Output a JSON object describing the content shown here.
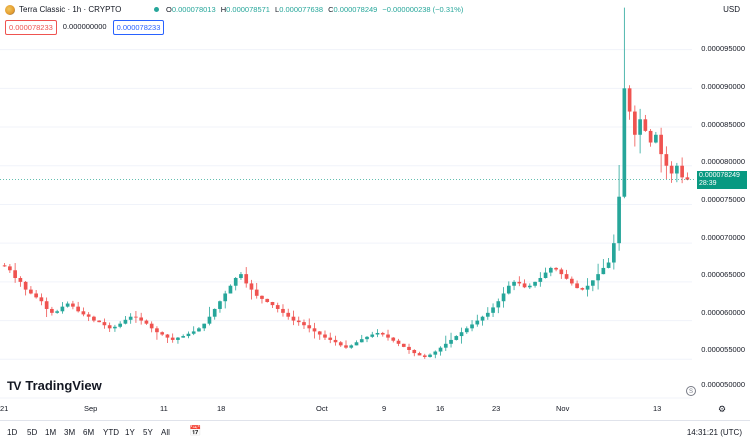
{
  "header": {
    "symbol_title": "Terra Classic · 1h · CRYPTO",
    "ohlc": [
      {
        "key": "O",
        "value": "0.000078013"
      },
      {
        "key": "H",
        "value": "0.000078571"
      },
      {
        "key": "L",
        "value": "0.000077638"
      },
      {
        "key": "C",
        "value": "0.000078249"
      }
    ],
    "change": "−0.000000238 (−0.31%)",
    "currency": "USD"
  },
  "trade": {
    "sell_price": "0.000078233",
    "spread": "0.000000000",
    "buy_price": "0.000078233"
  },
  "price_axis": {
    "labels": [
      "0.000095000",
      "0.000090000",
      "0.000085000",
      "0.000080000",
      "0.000075000",
      "0.000070000",
      "0.000065000",
      "0.000060000",
      "0.000055000",
      "0.000050000"
    ],
    "last_price": "0.000078249",
    "countdown": "28:39",
    "last_price_color": "#089981"
  },
  "time_axis": {
    "labels": [
      "21",
      "Sep",
      "11",
      "18",
      "Oct",
      "9",
      "16",
      "23",
      "Nov",
      "13"
    ]
  },
  "watermark": {
    "icon": "TV",
    "text": "TradingView"
  },
  "toolbar": {
    "timeframes": [
      "1D",
      "5D",
      "1M",
      "3M",
      "6M",
      "YTD",
      "1Y",
      "5Y",
      "All"
    ],
    "clock": "14:31:21 (UTC)"
  },
  "colors": {
    "up": "#26a69a",
    "down": "#ef5350",
    "accent": "#2962ff"
  },
  "chart_data": {
    "type": "candlestick",
    "title": "",
    "xlabel": "",
    "ylabel": "",
    "ylim": [
      5e-05,
      9.65e-05
    ],
    "x_ticks": [
      "21",
      "Sep",
      "11",
      "18",
      "Oct",
      "9",
      "16",
      "23",
      "Nov",
      "13"
    ],
    "y_ticks": [
      9.5e-05,
      9e-05,
      8.5e-05,
      8e-05,
      7.5e-05,
      7e-05,
      6.5e-05,
      6e-05,
      5.5e-05,
      5e-05
    ],
    "last_close": 7.8249e-05,
    "series_closes": [
      6.7e-05,
      6.65e-05,
      6.55e-05,
      6.5e-05,
      6.4e-05,
      6.35e-05,
      6.3e-05,
      6.25e-05,
      6.15e-05,
      6.1e-05,
      6.12e-05,
      6.18e-05,
      6.22e-05,
      6.18e-05,
      6.12e-05,
      6.08e-05,
      6.05e-05,
      6e-05,
      5.98e-05,
      5.94e-05,
      5.9e-05,
      5.92e-05,
      5.96e-05,
      6.01e-05,
      6.05e-05,
      6.04e-05,
      6e-05,
      5.96e-05,
      5.9e-05,
      5.85e-05,
      5.82e-05,
      5.78e-05,
      5.75e-05,
      5.78e-05,
      5.8e-05,
      5.83e-05,
      5.86e-05,
      5.9e-05,
      5.96e-05,
      6.05e-05,
      6.15e-05,
      6.25e-05,
      6.35e-05,
      6.45e-05,
      6.55e-05,
      6.6e-05,
      6.48e-05,
      6.4e-05,
      6.32e-05,
      6.28e-05,
      6.24e-05,
      6.2e-05,
      6.15e-05,
      6.1e-05,
      6.05e-05,
      6e-05,
      5.98e-05,
      5.94e-05,
      5.9e-05,
      5.86e-05,
      5.82e-05,
      5.78e-05,
      5.75e-05,
      5.72e-05,
      5.68e-05,
      5.65e-05,
      5.68e-05,
      5.72e-05,
      5.76e-05,
      5.79e-05,
      5.82e-05,
      5.84e-05,
      5.82e-05,
      5.78e-05,
      5.74e-05,
      5.7e-05,
      5.66e-05,
      5.62e-05,
      5.58e-05,
      5.55e-05,
      5.53e-05,
      5.56e-05,
      5.6e-05,
      5.65e-05,
      5.7e-05,
      5.75e-05,
      5.8e-05,
      5.85e-05,
      5.9e-05,
      5.95e-05,
      6e-05,
      6.05e-05,
      6.1e-05,
      6.17e-05,
      6.25e-05,
      6.35e-05,
      6.45e-05,
      6.5e-05,
      6.48e-05,
      6.43e-05,
      6.45e-05,
      6.5e-05,
      6.55e-05,
      6.62e-05,
      6.68e-05,
      6.66e-05,
      6.6e-05,
      6.54e-05,
      6.48e-05,
      6.42e-05,
      6.4e-05,
      6.45e-05,
      6.52e-05,
      6.6e-05,
      6.68e-05,
      6.75e-05,
      7e-05,
      7.6e-05,
      9e-05,
      8.7e-05,
      8.4e-05,
      8.6e-05,
      8.45e-05,
      8.3e-05,
      8.4e-05,
      8.15e-05,
      8e-05,
      7.9e-05,
      8e-05,
      7.85e-05,
      7.82e-05
    ]
  }
}
